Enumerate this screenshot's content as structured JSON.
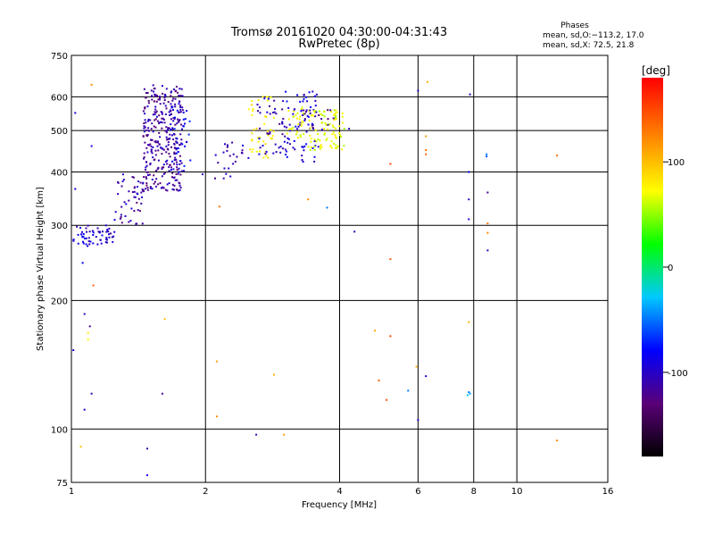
{
  "chart_data": {
    "type": "scatter",
    "title": "Tromsø 20161020 04:30:00-04:31:43",
    "subtitle": "RwPretec (8p)",
    "xlabel": "Frequency [MHz]",
    "ylabel": "Stationary phase Virtual Height [km]",
    "x_scale": "log",
    "y_scale": "log",
    "xlim": [
      1,
      16
    ],
    "ylim": [
      75,
      750
    ],
    "x_ticks": [
      1,
      2,
      4,
      6,
      8,
      10,
      16
    ],
    "y_ticks": [
      75,
      100,
      200,
      300,
      400,
      500,
      600,
      750
    ],
    "grid": true,
    "phases_note": {
      "title": "Phases",
      "line_o": "mean, sd,O:−113.2, 17.0",
      "line_x": "mean, sd,X:  72.5, 21.8"
    },
    "colorbar": {
      "label": "[deg]",
      "range": [
        -180,
        180
      ],
      "ticks": [
        100,
        0,
        -100
      ],
      "colors": [
        "#000000",
        "#5a0078",
        "#0000ff",
        "#00c8ff",
        "#00ff00",
        "#ffff00",
        "#ff8000",
        "#ff0000"
      ]
    },
    "clusters": [
      {
        "x_range": [
          1.01,
          1.25
        ],
        "y_range": [
          268,
          300
        ],
        "phase": -105,
        "count": 60
      },
      {
        "x_range": [
          1.25,
          1.45
        ],
        "y_range": [
          300,
          400
        ],
        "phase": -115,
        "count": 50
      },
      {
        "x_range": [
          1.45,
          1.78
        ],
        "y_range": [
          360,
          640
        ],
        "phase": -118,
        "count": 320
      },
      {
        "x_range": [
          1.65,
          1.85
        ],
        "y_range": [
          400,
          580
        ],
        "phase": -95,
        "count": 40
      },
      {
        "x_range": [
          2.1,
          2.5
        ],
        "y_range": [
          385,
          470
        ],
        "phase": -112,
        "count": 25
      },
      {
        "x_range": [
          2.5,
          2.85
        ],
        "y_range": [
          430,
          610
        ],
        "phase": 70,
        "count": 45
      },
      {
        "x_range": [
          2.6,
          3.0
        ],
        "y_range": [
          440,
          600
        ],
        "phase": -110,
        "count": 40
      },
      {
        "x_range": [
          3.0,
          3.6
        ],
        "y_range": [
          420,
          620
        ],
        "phase": -100,
        "count": 70
      },
      {
        "x_range": [
          3.05,
          3.35
        ],
        "y_range": [
          480,
          580
        ],
        "phase": 60,
        "count": 30
      },
      {
        "x_range": [
          3.4,
          4.1
        ],
        "y_range": [
          450,
          560
        ],
        "phase": 55,
        "count": 90
      },
      {
        "x_range": [
          3.3,
          3.9
        ],
        "y_range": [
          500,
          560
        ],
        "phase": -120,
        "count": 20
      }
    ],
    "points": [
      {
        "x": 1.02,
        "y": 550,
        "phase": -105
      },
      {
        "x": 1.02,
        "y": 365,
        "phase": -100
      },
      {
        "x": 1.01,
        "y": 153,
        "phase": -100
      },
      {
        "x": 1.06,
        "y": 245,
        "phase": -90
      },
      {
        "x": 1.07,
        "y": 186,
        "phase": -110
      },
      {
        "x": 1.09,
        "y": 168,
        "phase": 70
      },
      {
        "x": 1.09,
        "y": 162,
        "phase": 60
      },
      {
        "x": 1.1,
        "y": 174,
        "phase": -120
      },
      {
        "x": 1.11,
        "y": 460,
        "phase": -100
      },
      {
        "x": 1.11,
        "y": 640,
        "phase": 120
      },
      {
        "x": 1.12,
        "y": 217,
        "phase": 140
      },
      {
        "x": 1.07,
        "y": 111,
        "phase": -100
      },
      {
        "x": 1.11,
        "y": 121,
        "phase": -110
      },
      {
        "x": 1.05,
        "y": 91,
        "phase": 90
      },
      {
        "x": 1.48,
        "y": 90,
        "phase": -115
      },
      {
        "x": 1.48,
        "y": 78,
        "phase": -100
      },
      {
        "x": 1.6,
        "y": 121,
        "phase": -120
      },
      {
        "x": 1.62,
        "y": 181,
        "phase": 90
      },
      {
        "x": 1.97,
        "y": 395,
        "phase": -110
      },
      {
        "x": 2.12,
        "y": 144,
        "phase": 110
      },
      {
        "x": 2.12,
        "y": 107,
        "phase": 120
      },
      {
        "x": 2.15,
        "y": 332,
        "phase": 130
      },
      {
        "x": 2.6,
        "y": 97,
        "phase": -115
      },
      {
        "x": 2.85,
        "y": 134,
        "phase": 100
      },
      {
        "x": 3.0,
        "y": 97,
        "phase": 110
      },
      {
        "x": 3.75,
        "y": 330,
        "phase": -60
      },
      {
        "x": 3.4,
        "y": 345,
        "phase": 120
      },
      {
        "x": 4.32,
        "y": 290,
        "phase": -110
      },
      {
        "x": 4.2,
        "y": 505,
        "phase": -110
      },
      {
        "x": 4.8,
        "y": 170,
        "phase": 100
      },
      {
        "x": 4.9,
        "y": 130,
        "phase": 140
      },
      {
        "x": 5.1,
        "y": 117,
        "phase": 150
      },
      {
        "x": 5.2,
        "y": 165,
        "phase": 150
      },
      {
        "x": 5.2,
        "y": 418,
        "phase": 150
      },
      {
        "x": 5.2,
        "y": 250,
        "phase": 140
      },
      {
        "x": 5.7,
        "y": 123,
        "phase": -60
      },
      {
        "x": 5.95,
        "y": 140,
        "phase": 100
      },
      {
        "x": 6.0,
        "y": 105,
        "phase": -110
      },
      {
        "x": 6.0,
        "y": 620,
        "phase": -110
      },
      {
        "x": 6.25,
        "y": 133,
        "phase": -100
      },
      {
        "x": 6.25,
        "y": 450,
        "phase": 130
      },
      {
        "x": 6.25,
        "y": 440,
        "phase": 140
      },
      {
        "x": 6.25,
        "y": 485,
        "phase": 110
      },
      {
        "x": 6.3,
        "y": 650,
        "phase": 100
      },
      {
        "x": 7.75,
        "y": 120,
        "phase": -40
      },
      {
        "x": 7.85,
        "y": 121,
        "phase": -50
      },
      {
        "x": 7.8,
        "y": 122,
        "phase": -60
      },
      {
        "x": 7.8,
        "y": 178,
        "phase": 100
      },
      {
        "x": 7.8,
        "y": 310,
        "phase": -100
      },
      {
        "x": 7.8,
        "y": 345,
        "phase": -110
      },
      {
        "x": 7.8,
        "y": 400,
        "phase": -90
      },
      {
        "x": 7.85,
        "y": 608,
        "phase": -110
      },
      {
        "x": 8.55,
        "y": 440,
        "phase": -60
      },
      {
        "x": 8.55,
        "y": 435,
        "phase": -70
      },
      {
        "x": 8.6,
        "y": 358,
        "phase": -120
      },
      {
        "x": 8.6,
        "y": 303,
        "phase": 130
      },
      {
        "x": 8.6,
        "y": 288,
        "phase": 120
      },
      {
        "x": 8.6,
        "y": 262,
        "phase": -110
      },
      {
        "x": 12.3,
        "y": 437,
        "phase": 130
      },
      {
        "x": 12.3,
        "y": 94,
        "phase": 120
      }
    ]
  }
}
